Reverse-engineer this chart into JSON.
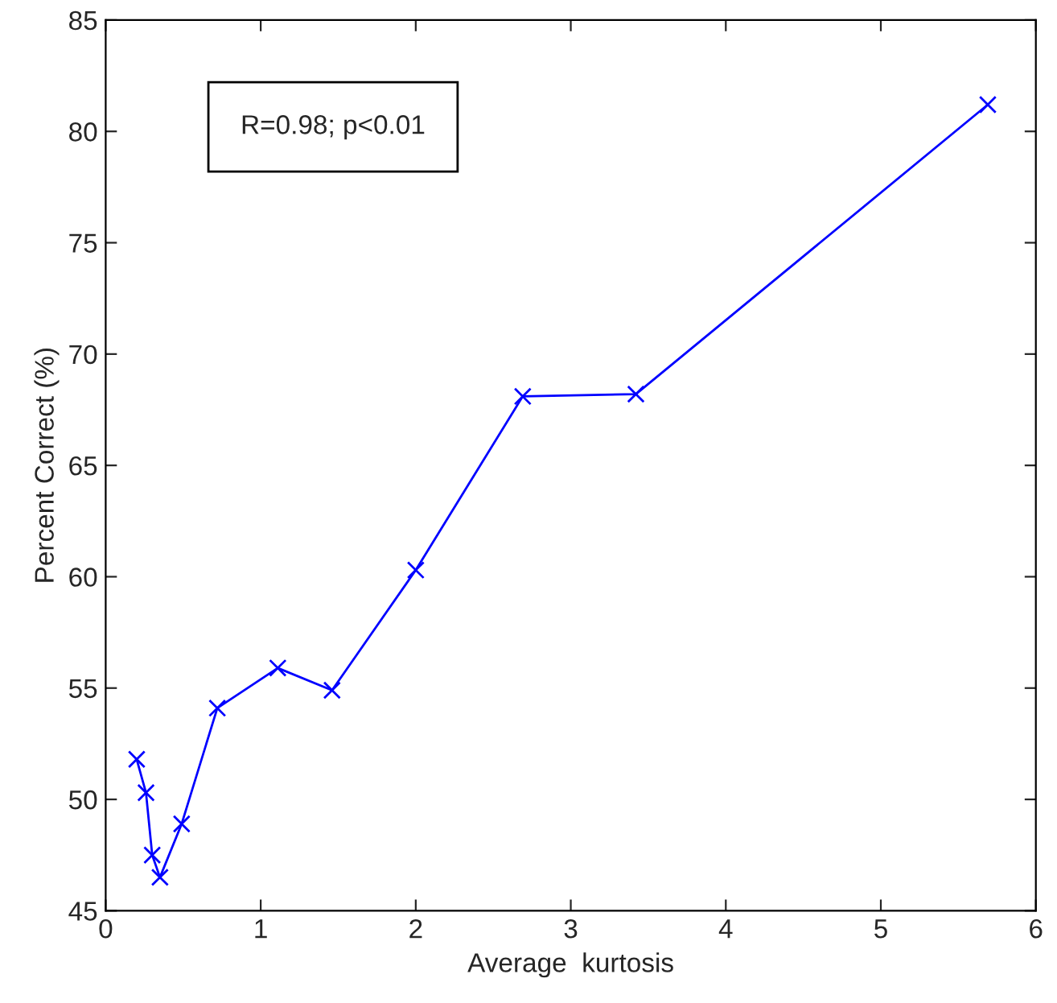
{
  "chart_data": {
    "type": "line",
    "xlabel": "Average  kurtosis",
    "ylabel": "Percent Correct (%)",
    "annotations": [
      "R=0.98; p<0.01"
    ],
    "x": [
      0.2,
      0.26,
      0.3,
      0.35,
      0.49,
      0.72,
      1.11,
      1.46,
      2.0,
      2.69,
      3.42,
      5.69
    ],
    "series": [
      {
        "color": "#0000ff",
        "values": [
          51.8,
          50.3,
          47.5,
          46.5,
          48.9,
          54.1,
          55.9,
          54.9,
          60.3,
          68.1,
          68.2,
          81.2
        ]
      }
    ],
    "xlim": [
      0,
      6
    ],
    "xticks": [
      0,
      1,
      2,
      3,
      4,
      5,
      6
    ],
    "ylim": [
      45,
      85
    ],
    "yticks": [
      45,
      50,
      55,
      60,
      65,
      70,
      75,
      80,
      85
    ],
    "grid": false,
    "legend": false,
    "marker": "cross",
    "line_style": "solid"
  }
}
